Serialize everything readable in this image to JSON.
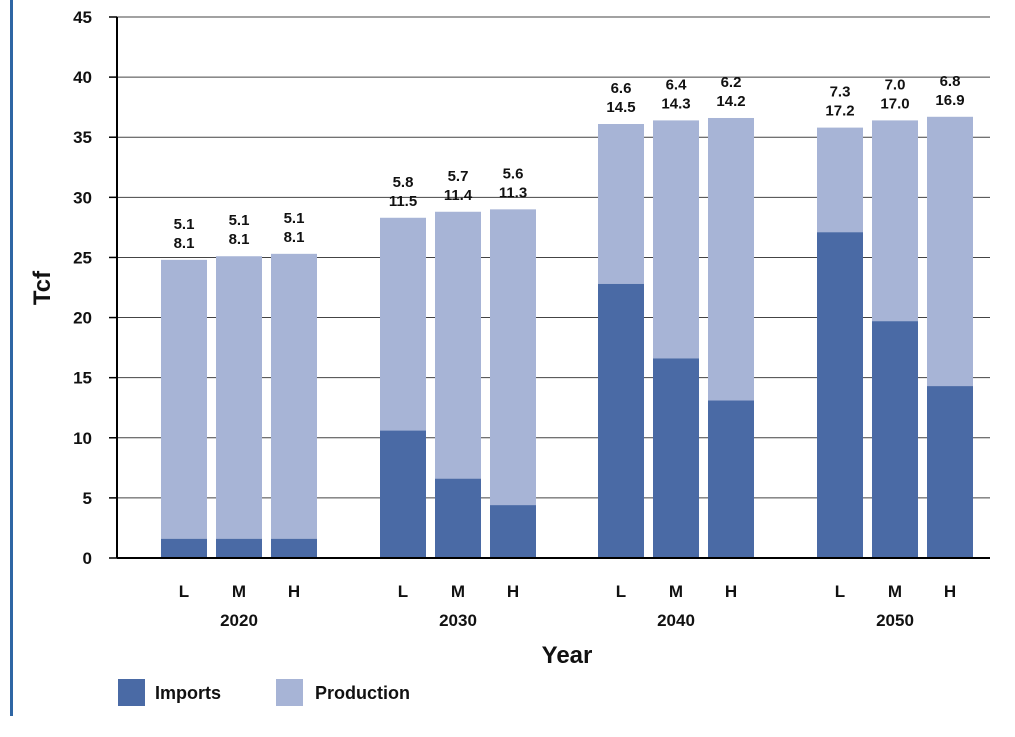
{
  "chart_data": {
    "type": "bar",
    "stacked": true,
    "ylabel": "Tcf",
    "xlabel": "Year",
    "ylim": [
      0,
      45
    ],
    "yticks": [
      0,
      5,
      10,
      15,
      20,
      25,
      30,
      35,
      40,
      45
    ],
    "grid": true,
    "legend_position": "bottom-left",
    "colors": {
      "Imports": "#4a6aa5",
      "Production": "#a7b4d6",
      "grid": "#444444",
      "axis": "#000000"
    },
    "groups": [
      {
        "year": "2020",
        "bars": [
          {
            "case": "L",
            "imports": 1.6,
            "production": 23.2,
            "labels": [
              "5.1",
              "8.1"
            ]
          },
          {
            "case": "M",
            "imports": 1.6,
            "production": 23.5,
            "labels": [
              "5.1",
              "8.1"
            ]
          },
          {
            "case": "H",
            "imports": 1.6,
            "production": 23.7,
            "labels": [
              "5.1",
              "8.1"
            ]
          }
        ]
      },
      {
        "year": "2030",
        "bars": [
          {
            "case": "L",
            "imports": 10.6,
            "production": 17.7,
            "labels": [
              "5.8",
              "11.5"
            ]
          },
          {
            "case": "M",
            "imports": 6.6,
            "production": 22.2,
            "labels": [
              "5.7",
              "11.4"
            ]
          },
          {
            "case": "H",
            "imports": 4.4,
            "production": 24.6,
            "labels": [
              "5.6",
              "11.3"
            ]
          }
        ]
      },
      {
        "year": "2040",
        "bars": [
          {
            "case": "L",
            "imports": 22.8,
            "production": 13.3,
            "labels": [
              "6.6",
              "14.5"
            ]
          },
          {
            "case": "M",
            "imports": 16.6,
            "production": 19.8,
            "labels": [
              "6.4",
              "14.3"
            ]
          },
          {
            "case": "H",
            "imports": 13.1,
            "production": 23.5,
            "labels": [
              "6.2",
              "14.2"
            ]
          }
        ]
      },
      {
        "year": "2050",
        "bars": [
          {
            "case": "L",
            "imports": 27.1,
            "production": 8.7,
            "labels": [
              "7.3",
              "17.2"
            ]
          },
          {
            "case": "M",
            "imports": 19.7,
            "production": 16.7,
            "labels": [
              "7.0",
              "17.0"
            ]
          },
          {
            "case": "H",
            "imports": 14.3,
            "production": 22.4,
            "labels": [
              "6.8",
              "16.9"
            ]
          }
        ]
      }
    ],
    "series": [
      {
        "name": "Imports"
      },
      {
        "name": "Production"
      }
    ]
  }
}
